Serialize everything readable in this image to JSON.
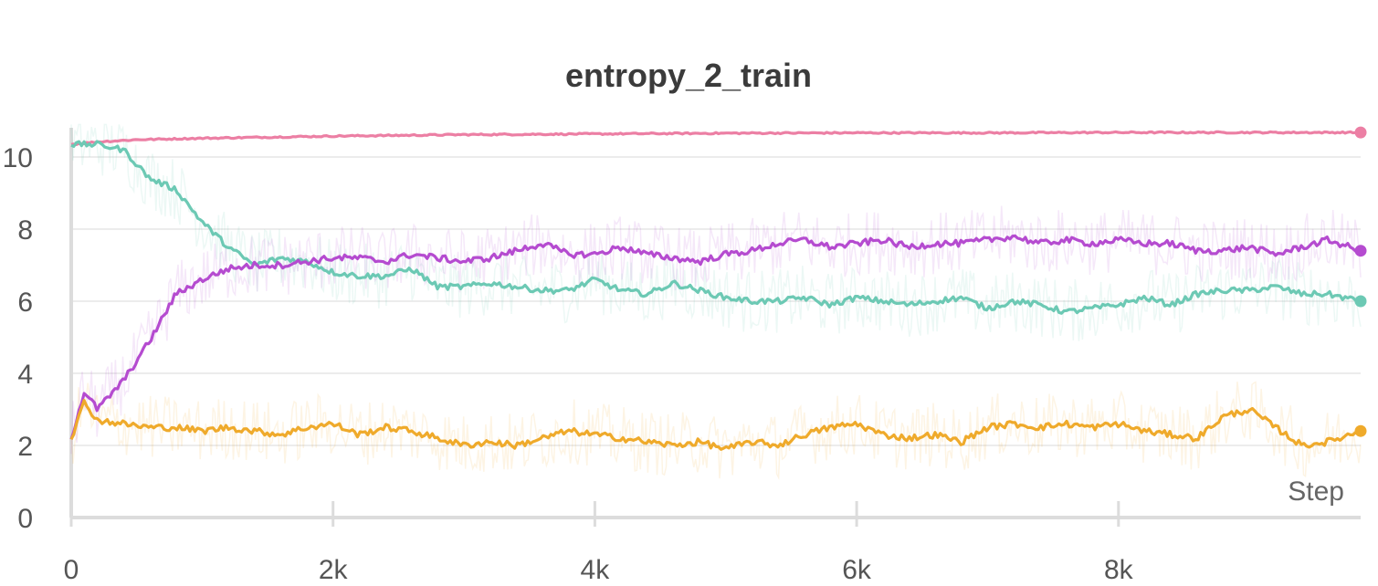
{
  "chart_data": {
    "type": "line",
    "title": "entropy_2_train",
    "xlabel": "Step",
    "ylabel": "",
    "xlim": [
      0,
      9850
    ],
    "ylim": [
      0,
      11
    ],
    "x_ticks": [
      0,
      2000,
      4000,
      6000,
      8000
    ],
    "x_tick_labels": [
      "0",
      "2k",
      "4k",
      "6k",
      "8k"
    ],
    "y_ticks": [
      0,
      2,
      4,
      6,
      8,
      10
    ],
    "y_tick_labels": [
      "0",
      "2",
      "4",
      "6",
      "8",
      "10"
    ],
    "grid": true,
    "legend": "none",
    "series": [
      {
        "color": "#ec7fa4",
        "x": [
          0,
          200,
          500,
          1000,
          2000,
          3000,
          4000,
          5000,
          6000,
          7000,
          8000,
          9000,
          9850
        ],
        "values": [
          10.35,
          10.42,
          10.48,
          10.52,
          10.58,
          10.62,
          10.64,
          10.66,
          10.67,
          10.67,
          10.68,
          10.68,
          10.68
        ]
      },
      {
        "color": "#6cc9b4",
        "x": [
          0,
          200,
          400,
          600,
          800,
          1000,
          1200,
          1400,
          1600,
          1800,
          2000,
          2200,
          2400,
          2600,
          2800,
          3000,
          3200,
          3400,
          3600,
          3800,
          4000,
          4200,
          4400,
          4600,
          4800,
          5000,
          5200,
          5400,
          5600,
          5800,
          6000,
          6200,
          6400,
          6600,
          6800,
          7000,
          7200,
          7400,
          7600,
          7800,
          8000,
          8200,
          8400,
          8600,
          8800,
          9000,
          9200,
          9400,
          9600,
          9850
        ],
        "values": [
          10.35,
          10.35,
          10.2,
          9.4,
          9.1,
          8.2,
          7.5,
          7.0,
          7.2,
          7.1,
          6.8,
          6.7,
          6.7,
          6.9,
          6.4,
          6.4,
          6.5,
          6.4,
          6.3,
          6.3,
          6.6,
          6.3,
          6.2,
          6.5,
          6.3,
          6.1,
          6.0,
          6.0,
          6.1,
          5.9,
          6.1,
          6.0,
          5.9,
          6.0,
          6.1,
          5.8,
          6.0,
          5.9,
          5.7,
          5.8,
          5.9,
          6.1,
          5.9,
          6.2,
          6.3,
          6.3,
          6.4,
          6.2,
          6.2,
          6.0
        ]
      },
      {
        "color": "#b54bd0",
        "x": [
          0,
          100,
          200,
          400,
          600,
          800,
          1000,
          1200,
          1400,
          1600,
          1800,
          2000,
          2200,
          2400,
          2600,
          2800,
          3000,
          3200,
          3400,
          3600,
          3800,
          4000,
          4200,
          4400,
          4600,
          4800,
          5000,
          5200,
          5400,
          5600,
          5800,
          6000,
          6200,
          6400,
          6600,
          6800,
          7000,
          7200,
          7400,
          7600,
          7800,
          8000,
          8200,
          8400,
          8600,
          8800,
          9000,
          9200,
          9400,
          9600,
          9850
        ],
        "values": [
          2.2,
          3.5,
          3.0,
          3.8,
          4.9,
          6.2,
          6.6,
          6.9,
          7.0,
          7.0,
          7.1,
          7.2,
          7.2,
          7.1,
          7.3,
          7.2,
          7.1,
          7.2,
          7.4,
          7.6,
          7.3,
          7.3,
          7.5,
          7.3,
          7.2,
          7.1,
          7.3,
          7.4,
          7.6,
          7.7,
          7.5,
          7.6,
          7.7,
          7.5,
          7.6,
          7.6,
          7.7,
          7.8,
          7.6,
          7.7,
          7.6,
          7.7,
          7.6,
          7.6,
          7.4,
          7.4,
          7.5,
          7.3,
          7.5,
          7.7,
          7.4
        ]
      },
      {
        "color": "#efaa2b",
        "x": [
          0,
          100,
          200,
          400,
          600,
          800,
          1000,
          1200,
          1400,
          1600,
          1800,
          2000,
          2200,
          2400,
          2600,
          2800,
          3000,
          3200,
          3400,
          3600,
          3800,
          4000,
          4200,
          4400,
          4600,
          4800,
          5000,
          5200,
          5400,
          5600,
          5800,
          6000,
          6200,
          6400,
          6600,
          6800,
          7000,
          7200,
          7400,
          7600,
          7800,
          8000,
          8200,
          8400,
          8600,
          8800,
          9000,
          9200,
          9400,
          9600,
          9850
        ],
        "values": [
          2.2,
          3.2,
          2.7,
          2.6,
          2.5,
          2.5,
          2.4,
          2.5,
          2.4,
          2.3,
          2.5,
          2.6,
          2.3,
          2.5,
          2.4,
          2.2,
          2.0,
          2.1,
          2.0,
          2.2,
          2.4,
          2.3,
          2.2,
          2.1,
          2.0,
          2.1,
          1.9,
          2.1,
          2.0,
          2.3,
          2.5,
          2.6,
          2.3,
          2.2,
          2.3,
          2.1,
          2.5,
          2.6,
          2.5,
          2.6,
          2.5,
          2.6,
          2.4,
          2.3,
          2.2,
          2.8,
          3.0,
          2.5,
          2.0,
          2.1,
          2.4
        ]
      }
    ]
  }
}
